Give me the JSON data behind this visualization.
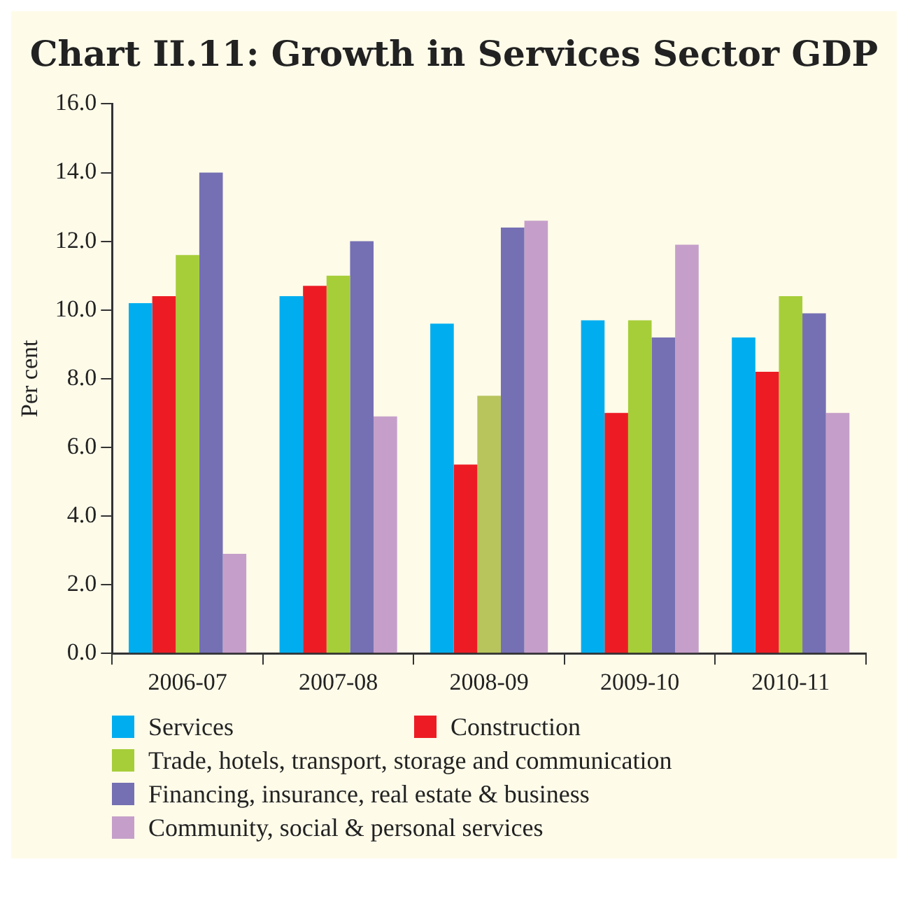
{
  "chart_data": {
    "type": "bar",
    "title": "Chart II.11: Growth in Services Sector GDP",
    "ylabel": "Per cent",
    "categories": [
      "2006-07",
      "2007-08",
      "2008-09",
      "2009-10",
      "2010-11"
    ],
    "series": [
      {
        "name": "Services",
        "color": "#00aeef",
        "values": [
          10.2,
          10.4,
          9.6,
          9.7,
          9.2
        ]
      },
      {
        "name": "Construction",
        "color": "#ed1c24",
        "values": [
          10.4,
          10.7,
          5.5,
          7.0,
          8.2
        ]
      },
      {
        "name": "Trade, hotels, transport, storage and communication",
        "color": "#a6ce39",
        "colors": [
          "#a6ce39",
          "#a6ce39",
          "#b8c45c",
          "#a6ce39",
          "#a6ce39"
        ],
        "values": [
          11.6,
          11.0,
          7.5,
          9.7,
          10.4
        ]
      },
      {
        "name": "Financing, insurance, real estate & business",
        "color": "#7570b3",
        "values": [
          14.0,
          12.0,
          12.4,
          9.2,
          9.9
        ]
      },
      {
        "name": "Community, social & personal services",
        "color": "#c59fc9",
        "values": [
          2.9,
          6.9,
          12.6,
          11.9,
          7.0
        ]
      }
    ],
    "ylim": [
      0,
      16
    ],
    "yticks": [
      {
        "value": 0,
        "label": "0.0"
      },
      {
        "value": 2,
        "label": "2.0"
      },
      {
        "value": 4,
        "label": "4.0"
      },
      {
        "value": 6,
        "label": "6.0"
      },
      {
        "value": 8,
        "label": "8.0"
      },
      {
        "value": 10,
        "label": "10.0"
      },
      {
        "value": 12,
        "label": "12.0"
      },
      {
        "value": 14,
        "label": "14.0"
      },
      {
        "value": 16,
        "label": "16.0"
      }
    ],
    "grid": false,
    "legend": "bottom"
  }
}
